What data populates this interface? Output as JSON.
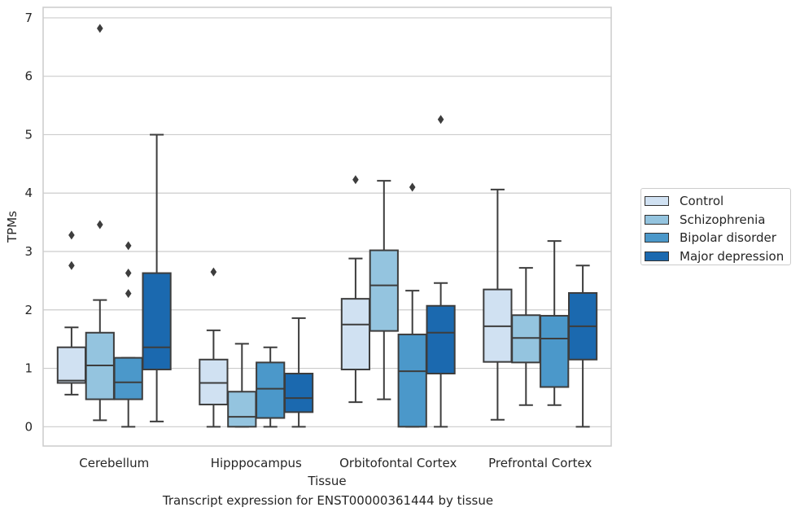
{
  "chart_data": {
    "type": "box",
    "title": "Transcript expression for ENST00000361444 by tissue",
    "xlabel": "Tissue",
    "ylabel": "TPMs",
    "ylim": [
      -0.33,
      7.18
    ],
    "yticks": [
      0,
      1,
      2,
      3,
      4,
      5,
      6,
      7
    ],
    "grid": true,
    "legend_position": "right",
    "categories": [
      "Cerebellum",
      "Hipppocampus",
      "Orbitofontal Cortex",
      "Prefrontal Cortex"
    ],
    "series": [
      {
        "name": "Control",
        "color": "#d0e1f2",
        "boxes": [
          {
            "whislo": 0.55,
            "q1": 0.75,
            "med": 0.79,
            "q3": 1.36,
            "whishi": 1.7,
            "fliers": [
              2.76,
              3.28
            ]
          },
          {
            "whislo": 0.0,
            "q1": 0.38,
            "med": 0.75,
            "q3": 1.15,
            "whishi": 1.65,
            "fliers": [
              2.65
            ]
          },
          {
            "whislo": 0.42,
            "q1": 0.98,
            "med": 1.75,
            "q3": 2.19,
            "whishi": 2.88,
            "fliers": [
              4.23
            ]
          },
          {
            "whislo": 0.12,
            "q1": 1.11,
            "med": 1.72,
            "q3": 2.35,
            "whishi": 4.06,
            "fliers": []
          }
        ]
      },
      {
        "name": "Schizophrenia",
        "color": "#94c4df",
        "boxes": [
          {
            "whislo": 0.11,
            "q1": 0.47,
            "med": 1.05,
            "q3": 1.61,
            "whishi": 2.17,
            "fliers": [
              3.46,
              6.82
            ]
          },
          {
            "whislo": 0.0,
            "q1": 0.0,
            "med": 0.17,
            "q3": 0.6,
            "whishi": 1.42,
            "fliers": []
          },
          {
            "whislo": 0.47,
            "q1": 1.64,
            "med": 2.42,
            "q3": 3.02,
            "whishi": 4.21,
            "fliers": []
          },
          {
            "whislo": 0.37,
            "q1": 1.1,
            "med": 1.52,
            "q3": 1.91,
            "whishi": 2.72,
            "fliers": []
          }
        ]
      },
      {
        "name": "Bipolar disorder",
        "color": "#4b98ca",
        "boxes": [
          {
            "whislo": 0.0,
            "q1": 0.47,
            "med": 0.76,
            "q3": 1.18,
            "whishi": 1.18,
            "fliers": [
              2.28,
              2.63,
              3.1
            ]
          },
          {
            "whislo": 0.0,
            "q1": 0.15,
            "med": 0.65,
            "q3": 1.1,
            "whishi": 1.36,
            "fliers": []
          },
          {
            "whislo": 0.0,
            "q1": 0.0,
            "med": 0.95,
            "q3": 1.58,
            "whishi": 2.33,
            "fliers": [
              4.1
            ]
          },
          {
            "whislo": 0.37,
            "q1": 0.68,
            "med": 1.51,
            "q3": 1.9,
            "whishi": 3.18,
            "fliers": []
          }
        ]
      },
      {
        "name": "Major depression",
        "color": "#1b69af",
        "boxes": [
          {
            "whislo": 0.09,
            "q1": 0.98,
            "med": 1.36,
            "q3": 2.63,
            "whishi": 5.0,
            "fliers": []
          },
          {
            "whislo": 0.0,
            "q1": 0.25,
            "med": 0.49,
            "q3": 0.91,
            "whishi": 1.86,
            "fliers": []
          },
          {
            "whislo": 0.0,
            "q1": 0.91,
            "med": 1.61,
            "q3": 2.07,
            "whishi": 2.46,
            "fliers": [
              5.26
            ]
          },
          {
            "whislo": 0.0,
            "q1": 1.15,
            "med": 1.72,
            "q3": 2.29,
            "whishi": 2.76,
            "fliers": []
          }
        ]
      }
    ]
  }
}
